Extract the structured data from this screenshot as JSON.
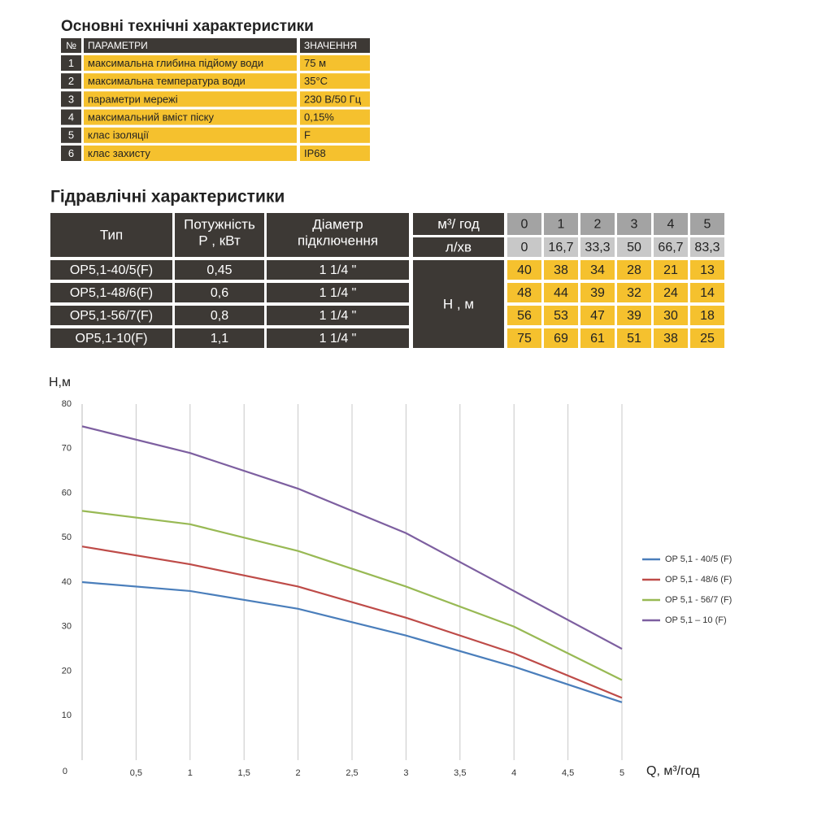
{
  "spec_title": "Основні технічні характеристики",
  "spec_table": {
    "header": [
      "№",
      "ПАРАМЕТРИ",
      "ЗНАЧЕННЯ"
    ],
    "rows": [
      [
        "1",
        "максимальна глибина підйому води",
        "75 м"
      ],
      [
        "2",
        "максимальна температура води",
        "35°С"
      ],
      [
        "3",
        "параметри мережі",
        "230 В/50 Гц"
      ],
      [
        "4",
        "максимальний вміст піску",
        "0,15%"
      ],
      [
        "5",
        "клас ізоляції",
        "F"
      ],
      [
        "6",
        "клас захисту",
        "IP68"
      ]
    ]
  },
  "hydraulic_title": "Гідравлічні характеристики",
  "hydraulic_table": {
    "header": {
      "type": "Тип",
      "power": [
        "Потужність",
        "Р , кВт"
      ],
      "diameter": [
        "Діаметр",
        "підключення"
      ],
      "flow_m3h_unit": "м³/ год",
      "flow_lmin_unit": "л/хв",
      "head_unit": "Н , м"
    },
    "flow_m3h": [
      "0",
      "1",
      "2",
      "3",
      "4",
      "5"
    ],
    "flow_lmin": [
      "0",
      "16,7",
      "33,3",
      "50",
      "66,7",
      "83,3"
    ],
    "rows": [
      {
        "type": "OP5,1-40/5(F)",
        "power": "0,45",
        "diameter": "1 1/4 \"",
        "heads": [
          "40",
          "38",
          "34",
          "28",
          "21",
          "13"
        ]
      },
      {
        "type": "OP5,1-48/6(F)",
        "power": "0,6",
        "diameter": "1 1/4 \"",
        "heads": [
          "48",
          "44",
          "39",
          "32",
          "24",
          "14"
        ]
      },
      {
        "type": "OP5,1-56/7(F)",
        "power": "0,8",
        "diameter": "1 1/4 \"",
        "heads": [
          "56",
          "53",
          "47",
          "39",
          "30",
          "18"
        ]
      },
      {
        "type": "OP5,1-10(F)",
        "power": "1,1",
        "diameter": "1 1/4 \"",
        "heads": [
          "75",
          "69",
          "61",
          "51",
          "38",
          "25"
        ]
      }
    ]
  },
  "chart_data": {
    "type": "line",
    "y_label": "Н,м",
    "x_label": "Q,  м³/год",
    "x": [
      0,
      1,
      2,
      3,
      4,
      5
    ],
    "xlim": [
      0,
      5
    ],
    "ylim": [
      0,
      80
    ],
    "xticks": [
      {
        "value": 0.5,
        "label": "0,5"
      },
      1,
      {
        "value": 1.5,
        "label": "1,5"
      },
      2,
      {
        "value": 2.5,
        "label": "2,5"
      },
      3,
      {
        "value": 3.5,
        "label": "3,5"
      },
      4,
      {
        "value": 4.5,
        "label": "4,5"
      },
      5
    ],
    "yticks": [
      0,
      10,
      20,
      30,
      40,
      50,
      60,
      70,
      80
    ],
    "grid": true,
    "legend": "right",
    "series": [
      {
        "name": "OP 5,1 - 40/5 (F)",
        "color": "#4a7ebb",
        "values": [
          40,
          38,
          34,
          28,
          21,
          13
        ]
      },
      {
        "name": "OP 5,1 - 48/6 (F)",
        "color": "#be4b48",
        "values": [
          48,
          44,
          39,
          32,
          24,
          14
        ]
      },
      {
        "name": "OP 5,1 - 56/7 (F)",
        "color": "#98b954",
        "values": [
          56,
          53,
          47,
          39,
          30,
          18
        ]
      },
      {
        "name": "OP 5,1 – 10 (F)",
        "color": "#7d5fa0",
        "values": [
          75,
          69,
          61,
          51,
          38,
          25
        ]
      }
    ]
  }
}
